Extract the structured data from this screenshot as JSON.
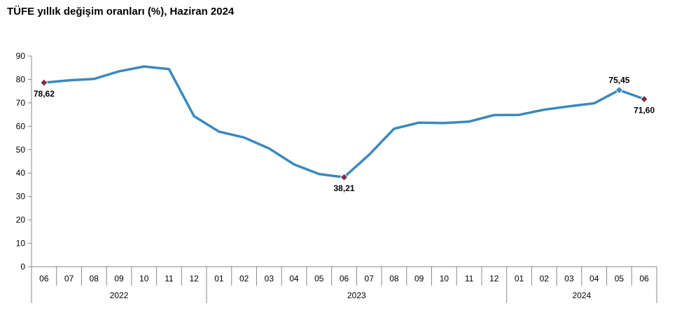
{
  "title": "TÜFE yıllık değişim oranları (%), Haziran 2024",
  "colors": {
    "line": "#3A89BD",
    "marker_highlight": "#7F2F45",
    "marker_normal": "#3A89BD",
    "axis": "#888888"
  },
  "chart_data": {
    "type": "line",
    "title": "TÜFE yıllık değişim oranları (%), Haziran 2024",
    "xlabel": "",
    "ylabel": "",
    "ylim": [
      0,
      90
    ],
    "yticks": [
      "0",
      "10",
      "20",
      "30",
      "40",
      "50",
      "60",
      "70",
      "80",
      "90"
    ],
    "grid": false,
    "categories": [
      "06",
      "07",
      "08",
      "09",
      "10",
      "11",
      "12",
      "01",
      "02",
      "03",
      "04",
      "05",
      "06",
      "07",
      "08",
      "09",
      "10",
      "11",
      "12",
      "01",
      "02",
      "03",
      "04",
      "05",
      "06"
    ],
    "years": [
      {
        "label": "2022",
        "start": 0,
        "end": 6
      },
      {
        "label": "2023",
        "start": 7,
        "end": 18
      },
      {
        "label": "2024",
        "start": 19,
        "end": 24
      }
    ],
    "series": [
      {
        "values": [
          78.62,
          79.6,
          80.21,
          83.45,
          85.51,
          84.39,
          64.27,
          57.68,
          55.18,
          50.51,
          43.68,
          39.59,
          38.21,
          47.83,
          58.94,
          61.53,
          61.36,
          61.98,
          64.77,
          64.86,
          67.07,
          68.5,
          69.8,
          75.45,
          71.6
        ]
      }
    ],
    "annotations": [
      {
        "index": 0,
        "text": "78,62",
        "position": "below",
        "marker": "highlight"
      },
      {
        "index": 12,
        "text": "38,21",
        "position": "below",
        "marker": "highlight"
      },
      {
        "index": 23,
        "text": "75,45",
        "position": "above",
        "marker": "normal"
      },
      {
        "index": 24,
        "text": "71,60",
        "position": "below",
        "marker": "highlight"
      }
    ]
  }
}
